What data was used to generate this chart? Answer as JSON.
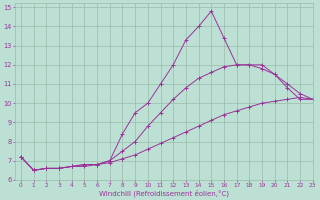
{
  "xlabel": "Windchill (Refroidissement éolien,°C)",
  "xlim": [
    -0.5,
    23
  ],
  "ylim": [
    6,
    15.2
  ],
  "yticks": [
    6,
    7,
    8,
    9,
    10,
    11,
    12,
    13,
    14,
    15
  ],
  "xticks": [
    0,
    1,
    2,
    3,
    4,
    5,
    6,
    7,
    8,
    9,
    10,
    11,
    12,
    13,
    14,
    15,
    16,
    17,
    18,
    19,
    20,
    21,
    22,
    23
  ],
  "bg_color": "#bde0d4",
  "line_color": "#993399",
  "grid_color": "#99bbaa",
  "line1_x": [
    0,
    1,
    2,
    3,
    4,
    5,
    6,
    7,
    8,
    9,
    10,
    11,
    12,
    13,
    14,
    15,
    16,
    17,
    18,
    19,
    20,
    21,
    22,
    23
  ],
  "line1_y": [
    7.2,
    6.5,
    6.6,
    6.6,
    6.7,
    6.8,
    6.8,
    7.0,
    8.4,
    9.5,
    10.0,
    11.0,
    12.0,
    13.3,
    14.0,
    14.8,
    13.4,
    12.0,
    12.0,
    12.0,
    11.5,
    10.8,
    10.2,
    10.2
  ],
  "line2_x": [
    0,
    1,
    2,
    3,
    4,
    5,
    6,
    7,
    8,
    9,
    10,
    11,
    12,
    13,
    14,
    15,
    16,
    17,
    18,
    19,
    20,
    21,
    22,
    23
  ],
  "line2_y": [
    7.2,
    6.5,
    6.6,
    6.6,
    6.7,
    6.8,
    6.8,
    7.0,
    7.5,
    8.0,
    8.8,
    9.5,
    10.2,
    10.8,
    11.3,
    11.6,
    11.9,
    12.0,
    12.0,
    11.8,
    11.5,
    11.0,
    10.5,
    10.2
  ],
  "line3_x": [
    0,
    1,
    2,
    3,
    4,
    5,
    6,
    7,
    8,
    9,
    10,
    11,
    12,
    13,
    14,
    15,
    16,
    17,
    18,
    19,
    20,
    21,
    22,
    23
  ],
  "line3_y": [
    7.2,
    6.5,
    6.6,
    6.6,
    6.7,
    6.7,
    6.8,
    6.9,
    7.1,
    7.3,
    7.6,
    7.9,
    8.2,
    8.5,
    8.8,
    9.1,
    9.4,
    9.6,
    9.8,
    10.0,
    10.1,
    10.2,
    10.3,
    10.2
  ]
}
